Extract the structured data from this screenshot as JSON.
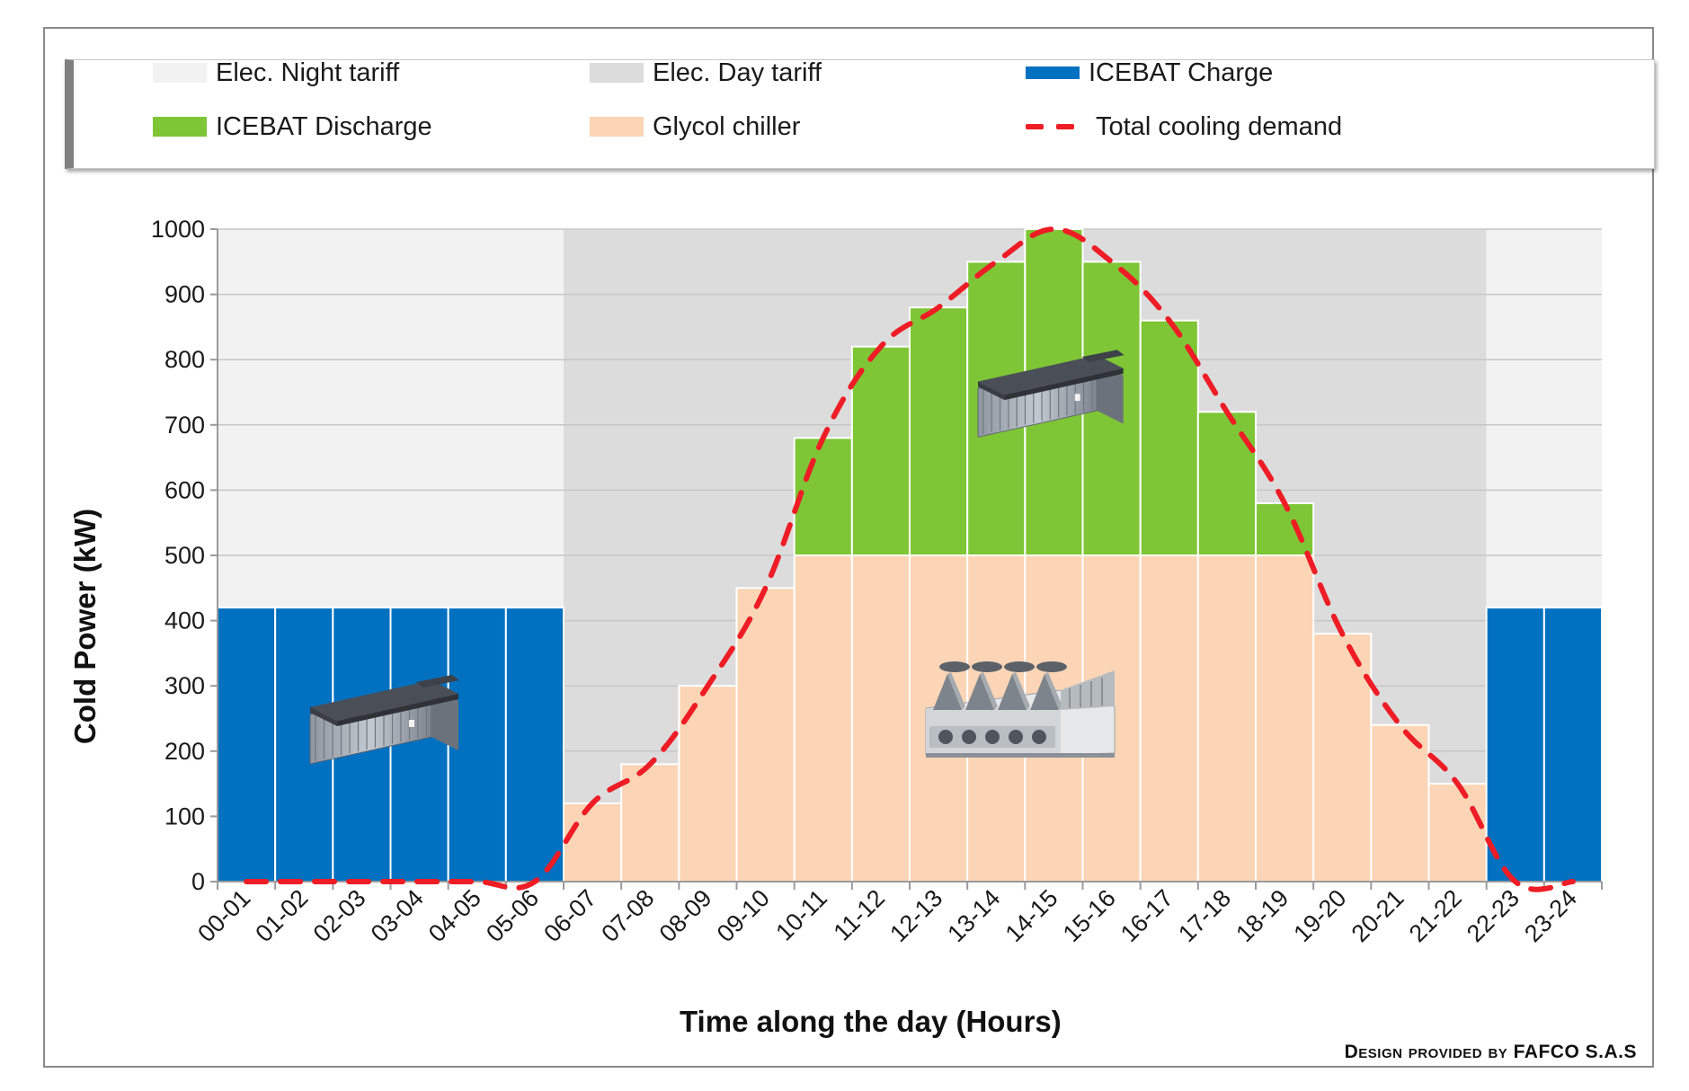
{
  "legend": {
    "night_tariff": "Elec. Night tariff",
    "day_tariff": "Elec. Day tariff",
    "icebat_charge": "ICEBAT Charge",
    "icebat_discharge": "ICEBAT Discharge",
    "glycol_chiller": "Glycol chiller",
    "total_demand": "Total cooling demand"
  },
  "colors": {
    "night_tariff": "#f2f2f2",
    "day_tariff": "#dcdcdc",
    "icebat_charge": "#0070c0",
    "icebat_discharge": "#7ec636",
    "glycol_chiller": "#fbd5b5",
    "total_demand": "#ee1c25"
  },
  "credit": "Design provided by FAFCO S.A.S",
  "icons": [
    "ice-battery-icon",
    "ice-battery-icon",
    "glycol-chiller-icon"
  ],
  "chart_data": {
    "type": "bar",
    "stacked": true,
    "title": "",
    "xlabel": "Time along the day (Hours)",
    "ylabel": "Cold Power (kW)",
    "ylim": [
      0,
      1000
    ],
    "yticks": [
      0,
      100,
      200,
      300,
      400,
      500,
      600,
      700,
      800,
      900,
      1000
    ],
    "categories": [
      "00-01",
      "01-02",
      "02-03",
      "03-04",
      "04-05",
      "05-06",
      "06-07",
      "07-08",
      "08-09",
      "09-10",
      "10-11",
      "11-12",
      "12-13",
      "13-14",
      "14-15",
      "15-16",
      "16-17",
      "17-18",
      "18-19",
      "19-20",
      "20-21",
      "21-22",
      "22-23",
      "23-24"
    ],
    "background_bands": [
      {
        "name": "Elec. Night tariff",
        "from": "00-01",
        "to": "05-06"
      },
      {
        "name": "Elec. Day tariff",
        "from": "06-07",
        "to": "21-22"
      },
      {
        "name": "Elec. Night tariff",
        "from": "22-23",
        "to": "23-24"
      }
    ],
    "series": [
      {
        "name": "ICEBAT Charge",
        "kind": "bar",
        "values": [
          420,
          420,
          420,
          420,
          420,
          420,
          0,
          0,
          0,
          0,
          0,
          0,
          0,
          0,
          0,
          0,
          0,
          0,
          0,
          0,
          0,
          0,
          420,
          420
        ]
      },
      {
        "name": "Glycol chiller",
        "kind": "bar",
        "values": [
          0,
          0,
          0,
          0,
          0,
          0,
          120,
          180,
          300,
          450,
          500,
          500,
          500,
          500,
          500,
          500,
          500,
          500,
          500,
          380,
          240,
          150,
          0,
          0
        ]
      },
      {
        "name": "ICEBAT Discharge",
        "kind": "bar",
        "values": [
          0,
          0,
          0,
          0,
          0,
          0,
          0,
          0,
          0,
          0,
          180,
          320,
          380,
          450,
          500,
          450,
          360,
          220,
          80,
          0,
          0,
          0,
          0,
          0
        ]
      },
      {
        "name": "Total cooling demand",
        "kind": "line",
        "style": "dashed",
        "values": [
          0,
          0,
          0,
          0,
          0,
          0,
          120,
          180,
          300,
          450,
          680,
          820,
          880,
          950,
          1000,
          950,
          860,
          720,
          580,
          380,
          240,
          150,
          0,
          0
        ]
      }
    ]
  }
}
